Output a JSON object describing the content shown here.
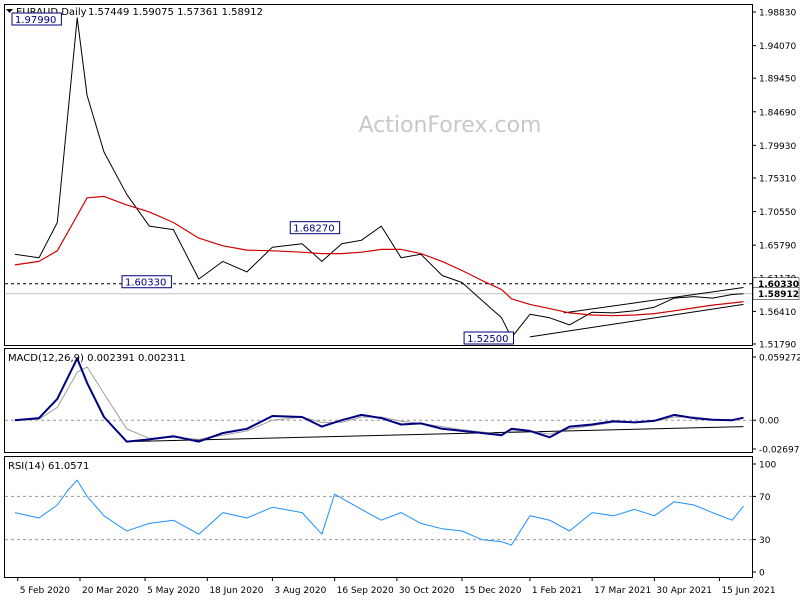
{
  "header": {
    "symbol": "EURAUD,Daily",
    "ohlc": "1.57449 1.59075 1.57361 1.58912"
  },
  "watermark": "ActionForex.com",
  "colors": {
    "background": "#ffffff",
    "price": "#000000",
    "ma": "#d00000",
    "macd": "#000080",
    "signal": "#a0a0a0",
    "rsi": "#1e90ff",
    "grid": "#999999",
    "label_border": "#000080"
  },
  "chart_data": [
    {
      "type": "line",
      "panel": "price",
      "x_ticks": [
        "5 Feb 2020",
        "20 Mar 2020",
        "5 May 2020",
        "18 Jun 2020",
        "3 Aug 2020",
        "16 Sep 2020",
        "30 Oct 2020",
        "15 Dec 2020",
        "1 Feb 2021",
        "17 Mar 2021",
        "30 Apr 2021",
        "15 Jun 2021"
      ],
      "y_ticks": [
        "1.98830",
        "1.94070",
        "1.89450",
        "1.84690",
        "1.79930",
        "1.75310",
        "1.70550",
        "1.65790",
        "1.61170",
        "1.56410",
        "1.51790"
      ],
      "ylim": [
        1.5179,
        1.9883
      ],
      "current_price_label": "1.58912",
      "current_price": 1.58912,
      "level_label": "1.60330",
      "level": 1.6033,
      "annotations": [
        {
          "text": "1.97990",
          "x": "2020-03-18",
          "y": 1.9799
        },
        {
          "text": "1.60330",
          "x": "2020-06-12",
          "y": 1.6033
        },
        {
          "text": "1.68270",
          "x": "2020-09-16",
          "y": 1.6827
        },
        {
          "text": "1.52500",
          "x": "2021-01-19",
          "y": 1.525
        }
      ],
      "series": [
        {
          "role": "price",
          "x": [
            "2020-02-03",
            "2020-02-20",
            "2020-03-04",
            "2020-03-18",
            "2020-03-25",
            "2020-04-06",
            "2020-04-22",
            "2020-05-08",
            "2020-05-25",
            "2020-06-12",
            "2020-06-29",
            "2020-07-16",
            "2020-08-03",
            "2020-08-24",
            "2020-09-07",
            "2020-09-21",
            "2020-10-05",
            "2020-10-19",
            "2020-11-02",
            "2020-11-16",
            "2020-12-01",
            "2020-12-15",
            "2020-12-29",
            "2021-01-12",
            "2021-01-19",
            "2021-02-01",
            "2021-02-15",
            "2021-03-01",
            "2021-03-17",
            "2021-04-01",
            "2021-04-16",
            "2021-04-30",
            "2021-05-14",
            "2021-05-28",
            "2021-06-10",
            "2021-06-24",
            "2021-07-02"
          ],
          "values": [
            1.645,
            1.64,
            1.69,
            1.98,
            1.87,
            1.79,
            1.73,
            1.685,
            1.68,
            1.61,
            1.635,
            1.62,
            1.655,
            1.66,
            1.635,
            1.66,
            1.665,
            1.685,
            1.64,
            1.645,
            1.615,
            1.605,
            1.58,
            1.555,
            1.527,
            1.56,
            1.555,
            1.545,
            1.563,
            1.562,
            1.565,
            1.57,
            1.583,
            1.585,
            1.583,
            1.588,
            1.589
          ]
        },
        {
          "role": "moving-average",
          "x": [
            "2020-02-03",
            "2020-02-20",
            "2020-03-04",
            "2020-03-18",
            "2020-03-25",
            "2020-04-06",
            "2020-04-22",
            "2020-05-08",
            "2020-05-25",
            "2020-06-12",
            "2020-06-29",
            "2020-07-16",
            "2020-08-03",
            "2020-08-24",
            "2020-09-07",
            "2020-09-21",
            "2020-10-05",
            "2020-10-19",
            "2020-11-02",
            "2020-11-16",
            "2020-12-01",
            "2020-12-15",
            "2020-12-29",
            "2021-01-12",
            "2021-01-19",
            "2021-02-01",
            "2021-02-15",
            "2021-03-01",
            "2021-03-17",
            "2021-04-01",
            "2021-04-16",
            "2021-04-30",
            "2021-05-14",
            "2021-05-28",
            "2021-06-10",
            "2021-06-24",
            "2021-07-02"
          ],
          "values": [
            1.63,
            1.635,
            1.65,
            1.7,
            1.725,
            1.727,
            1.715,
            1.705,
            1.69,
            1.668,
            1.657,
            1.651,
            1.65,
            1.648,
            1.646,
            1.646,
            1.648,
            1.652,
            1.652,
            1.646,
            1.635,
            1.622,
            1.608,
            1.595,
            1.582,
            1.574,
            1.568,
            1.562,
            1.559,
            1.558,
            1.559,
            1.561,
            1.565,
            1.569,
            1.573,
            1.576,
            1.578
          ]
        },
        {
          "role": "channel-upper",
          "x": [
            "2021-02-25",
            "2021-07-02"
          ],
          "values": [
            1.562,
            1.598
          ]
        },
        {
          "role": "channel-lower",
          "x": [
            "2021-02-01",
            "2021-07-02"
          ],
          "values": [
            1.528,
            1.574
          ]
        }
      ]
    },
    {
      "type": "line",
      "panel": "macd",
      "title": "MACD(12,26,9) 0.002391 0.002311",
      "y_ticks": [
        "0.059272",
        "0.00",
        "-0.026978"
      ],
      "ylim": [
        -0.026978,
        0.059272
      ],
      "series": [
        {
          "role": "macd",
          "x": [
            "2020-02-03",
            "2020-02-20",
            "2020-03-04",
            "2020-03-18",
            "2020-03-25",
            "2020-04-06",
            "2020-04-22",
            "2020-05-08",
            "2020-05-25",
            "2020-06-12",
            "2020-06-29",
            "2020-07-16",
            "2020-08-03",
            "2020-08-24",
            "2020-09-07",
            "2020-09-21",
            "2020-10-05",
            "2020-10-19",
            "2020-11-02",
            "2020-11-16",
            "2020-12-01",
            "2020-12-15",
            "2020-12-29",
            "2021-01-12",
            "2021-01-19",
            "2021-02-01",
            "2021-02-15",
            "2021-03-01",
            "2021-03-17",
            "2021-04-01",
            "2021-04-16",
            "2021-04-30",
            "2021-05-14",
            "2021-05-28",
            "2021-06-10",
            "2021-06-24",
            "2021-07-02"
          ],
          "values": [
            0.0,
            0.002,
            0.02,
            0.058,
            0.035,
            0.003,
            -0.02,
            -0.018,
            -0.015,
            -0.02,
            -0.012,
            -0.008,
            0.004,
            0.003,
            -0.006,
            0.0,
            0.005,
            0.002,
            -0.004,
            -0.003,
            -0.008,
            -0.01,
            -0.012,
            -0.014,
            -0.008,
            -0.01,
            -0.016,
            -0.006,
            -0.004,
            -0.001,
            -0.002,
            -0.0005,
            0.005,
            0.002,
            0.0005,
            0.0,
            0.0024
          ]
        },
        {
          "role": "signal",
          "x": [
            "2020-02-03",
            "2020-02-20",
            "2020-03-04",
            "2020-03-18",
            "2020-03-25",
            "2020-04-06",
            "2020-04-22",
            "2020-05-08",
            "2020-05-25",
            "2020-06-12",
            "2020-06-29",
            "2020-07-16",
            "2020-08-03",
            "2020-08-24",
            "2020-09-07",
            "2020-09-21",
            "2020-10-05",
            "2020-10-19",
            "2020-11-02",
            "2020-11-16",
            "2020-12-01",
            "2020-12-15",
            "2020-12-29",
            "2021-01-12",
            "2021-01-19",
            "2021-02-01",
            "2021-02-15",
            "2021-03-01",
            "2021-03-17",
            "2021-04-01",
            "2021-04-16",
            "2021-04-30",
            "2021-05-14",
            "2021-05-28",
            "2021-06-10",
            "2021-06-24",
            "2021-07-02"
          ],
          "values": [
            0.0,
            0.001,
            0.012,
            0.045,
            0.05,
            0.025,
            -0.008,
            -0.017,
            -0.016,
            -0.018,
            -0.014,
            -0.01,
            0.0,
            0.003,
            -0.002,
            -0.002,
            0.003,
            0.003,
            -0.001,
            -0.003,
            -0.006,
            -0.009,
            -0.011,
            -0.013,
            -0.01,
            -0.01,
            -0.013,
            -0.008,
            -0.005,
            -0.002,
            -0.002,
            -0.001,
            0.003,
            0.003,
            0.001,
            0.0005,
            0.0023
          ]
        },
        {
          "role": "trendline",
          "x": [
            "2020-04-22",
            "2021-07-02"
          ],
          "values": [
            -0.02,
            -0.006
          ]
        }
      ]
    },
    {
      "type": "line",
      "panel": "rsi",
      "title": "RSI(14) 61.0571",
      "y_ticks": [
        "100",
        "70",
        "30",
        "0"
      ],
      "ylim": [
        0,
        100
      ],
      "grid_levels": [
        70,
        30
      ],
      "series": [
        {
          "role": "rsi",
          "x": [
            "2020-02-03",
            "2020-02-20",
            "2020-03-04",
            "2020-03-11",
            "2020-03-18",
            "2020-03-25",
            "2020-04-06",
            "2020-04-22",
            "2020-05-08",
            "2020-05-25",
            "2020-06-12",
            "2020-06-29",
            "2020-07-16",
            "2020-08-03",
            "2020-08-24",
            "2020-09-07",
            "2020-09-16",
            "2020-10-05",
            "2020-10-19",
            "2020-11-02",
            "2020-11-16",
            "2020-12-01",
            "2020-12-15",
            "2020-12-29",
            "2021-01-12",
            "2021-01-19",
            "2021-02-01",
            "2021-02-15",
            "2021-03-01",
            "2021-03-17",
            "2021-04-01",
            "2021-04-16",
            "2021-04-30",
            "2021-05-14",
            "2021-05-28",
            "2021-06-10",
            "2021-06-24",
            "2021-07-02"
          ],
          "values": [
            55,
            50,
            62,
            75,
            85,
            70,
            52,
            38,
            45,
            48,
            35,
            55,
            50,
            60,
            55,
            35,
            72,
            58,
            48,
            55,
            45,
            40,
            38,
            30,
            28,
            25,
            52,
            48,
            38,
            55,
            52,
            58,
            52,
            65,
            62,
            55,
            48,
            61
          ]
        }
      ]
    }
  ]
}
